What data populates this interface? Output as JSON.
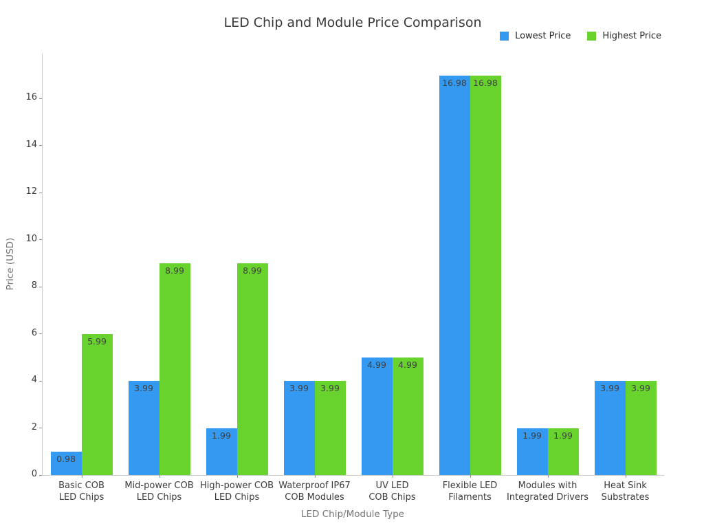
{
  "chart_data": {
    "type": "bar",
    "title": "LED Chip and Module Price Comparison",
    "xlabel": "LED Chip/Module Type",
    "ylabel": "Price (USD)",
    "categories": [
      "Basic COB\nLED Chips",
      "Mid-power COB\nLED Chips",
      "High-power COB\nLED Chips",
      "Waterproof IP67\nCOB Modules",
      "UV LED\nCOB Chips",
      "Flexible LED\nFilaments",
      "Modules with\nIntegrated Drivers",
      "Heat Sink\nSubstrates"
    ],
    "series": [
      {
        "name": "Lowest Price",
        "color": "#3399F1",
        "values": [
          0.98,
          3.99,
          1.99,
          3.99,
          4.99,
          16.98,
          1.99,
          3.99
        ]
      },
      {
        "name": "Highest Price",
        "color": "#69D32E",
        "values": [
          5.99,
          8.99,
          8.99,
          3.99,
          4.99,
          16.98,
          1.99,
          3.99
        ]
      }
    ],
    "value_labels": [
      [
        "0.98",
        "3.99",
        "1.99",
        "3.99",
        "4.99",
        "16.98",
        "1.99",
        "3.99"
      ],
      [
        "5.99",
        "8.99",
        "8.99",
        "3.99",
        "4.99",
        "16.98",
        "1.99",
        "3.99"
      ]
    ],
    "yticks": [
      "0",
      "2",
      "4",
      "6",
      "8",
      "10",
      "12",
      "14",
      "16"
    ],
    "ylim": [
      0,
      17.9
    ],
    "grid": false,
    "legend_position": "top-right"
  }
}
